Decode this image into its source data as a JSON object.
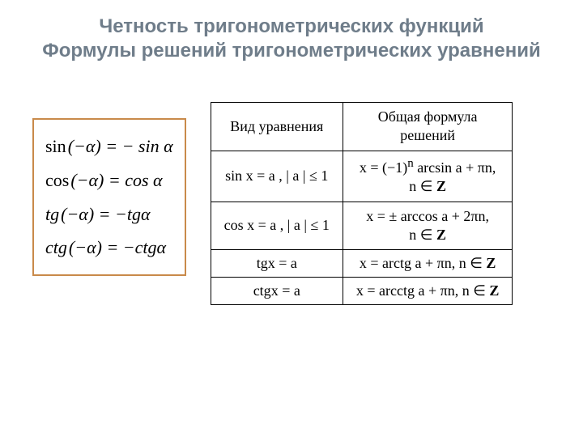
{
  "title": "Четность тригонометрических функций\nФормулы решений тригонометрических уравнений",
  "title_color": "#6f7d8a",
  "title_fontsize": 24,
  "title_fontfamily": "Segoe UI",
  "identities_box": {
    "border_color": "#c98a4a",
    "border_width": 2,
    "item_fontsize": 22,
    "rows": [
      {
        "lhs_fn": "sin",
        "lhs_arg": "(−α)",
        "rhs": "= − sin α",
        "fn_italic": false
      },
      {
        "lhs_fn": "cos",
        "lhs_arg": "(−α)",
        "rhs": "= cos α",
        "fn_italic": false
      },
      {
        "lhs_fn": "tg",
        "lhs_arg": "(−α)",
        "rhs": "= −tgα",
        "fn_italic": true
      },
      {
        "lhs_fn": "ctg",
        "lhs_arg": "(−α)",
        "rhs": "= −ctgα",
        "fn_italic": true
      }
    ]
  },
  "solutions_table": {
    "type": "table",
    "fontsize": 18,
    "border_color": "#000000",
    "background_color": "#ffffff",
    "columns": [
      "Вид уравнения",
      "Общая формула\nрешений"
    ],
    "rows": [
      {
        "eqn_fn": "sin",
        "eqn_var": "x",
        "eqn_rest": " = a ,  | a | ≤ 1",
        "sol_line1_pre": "x = (−1)",
        "sol_line1_sup": "n",
        "sol_line1_post": " arcsin a + πn,",
        "sol_line2_pre": "n ∈ ",
        "sol_line2_set": "Z"
      },
      {
        "eqn_fn": "cos",
        "eqn_var": "x",
        "eqn_rest": " = a ,  | a | ≤ 1",
        "sol_line1_pre": "x = ± arccos a + 2πn,",
        "sol_line1_sup": "",
        "sol_line1_post": "",
        "sol_line2_pre": "n ∈ ",
        "sol_line2_set": "Z"
      },
      {
        "eqn_fn": "tg",
        "eqn_var": "x",
        "eqn_rest": " = a",
        "sol_line1_pre": "x = arctg a + πn,   n ∈ ",
        "sol_line1_sup": "",
        "sol_line1_post": "",
        "sol_line2_pre": "",
        "sol_line2_set": "Z"
      },
      {
        "eqn_fn": "ctg",
        "eqn_var": "x",
        "eqn_rest": " = a",
        "sol_line1_pre": "x = arcctg a + πn,  n ∈ ",
        "sol_line1_sup": "",
        "sol_line1_post": "",
        "sol_line2_pre": "",
        "sol_line2_set": "Z"
      }
    ]
  }
}
